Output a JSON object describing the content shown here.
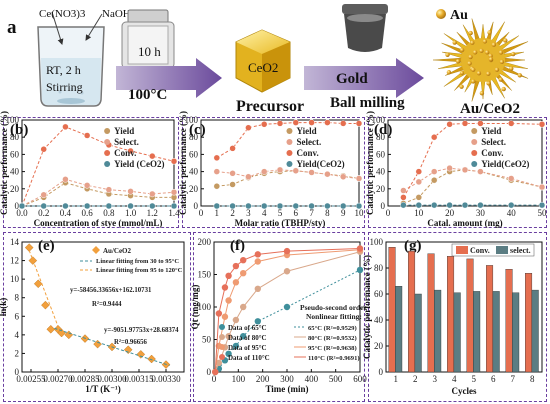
{
  "scheme": {
    "panel_label": "a",
    "step1_reagents": [
      "Ce(NO3)3",
      "NaOH"
    ],
    "step1_condition": [
      "RT, 2 h",
      "Stirring"
    ],
    "step2_time": "10 h",
    "step2_temperature": "100°C",
    "precursor_formula": "CeO2",
    "precursor_label": "Precursor",
    "gold_label": "Gold",
    "milling_label": "Ball milling",
    "legend_au": "Au",
    "product_label": "Au/CeO2"
  },
  "colors": {
    "yield": "#c49a62",
    "select": "#e6a08a",
    "conv": "#e56e4f",
    "ceo2": "#4f8a98",
    "orange": "#f2a03d",
    "teal": "#3f8f9b"
  },
  "chart_data": [
    {
      "panel": "b",
      "type": "line",
      "xlabel": "Concentration of stye (mmol/mL)",
      "ylabel": "Catalytic performance (%)",
      "xlim": [
        0,
        1.4
      ],
      "ylim": [
        0,
        100
      ],
      "xticks": [
        "0.0",
        "0.2",
        "0.4",
        "0.6",
        "0.8",
        "1.0",
        "1.2",
        "1.4"
      ],
      "yticks": [
        "0",
        "20",
        "40",
        "60",
        "80",
        "100"
      ],
      "legend": [
        "Yield",
        "Select.",
        "Conv.",
        "Yield (CeO2)"
      ],
      "series": [
        {
          "name": "Yield",
          "x": [
            0,
            0.2,
            0.4,
            0.6,
            0.8,
            1.0,
            1.2,
            1.4
          ],
          "values": [
            0,
            10,
            27,
            20,
            14,
            12,
            10,
            10
          ]
        },
        {
          "name": "Select.",
          "x": [
            0,
            0.2,
            0.4,
            0.6,
            0.8,
            1.0,
            1.2,
            1.4
          ],
          "values": [
            0,
            13,
            31,
            24,
            19,
            17,
            14,
            16
          ]
        },
        {
          "name": "Conv.",
          "x": [
            0,
            0.2,
            0.4,
            0.6,
            0.8,
            1.0,
            1.2,
            1.4
          ],
          "values": [
            0,
            66,
            92,
            82,
            71,
            64,
            58,
            52
          ]
        },
        {
          "name": "Yield (CeO2)",
          "x": [
            0,
            0.2,
            0.4,
            0.6,
            0.8,
            1.0,
            1.2,
            1.4
          ],
          "values": [
            0,
            0,
            0,
            0,
            0,
            0,
            0,
            0
          ]
        }
      ]
    },
    {
      "panel": "c",
      "type": "line",
      "xlabel": "Molar ratio (TBHP/sty)",
      "ylabel": "Catalytic performance (%)",
      "xlim": [
        0,
        10
      ],
      "ylim": [
        0,
        100
      ],
      "xticks": [
        "0",
        "1",
        "2",
        "3",
        "4",
        "5",
        "6",
        "7",
        "8",
        "9",
        "10"
      ],
      "yticks": [
        "0",
        "20",
        "40",
        "60",
        "80",
        "100"
      ],
      "legend": [
        "Yield",
        "Select.",
        "Conv.",
        "Yield(CeO2)"
      ],
      "series": [
        {
          "name": "Yield",
          "x": [
            1,
            2,
            3,
            4,
            5,
            6,
            7,
            8,
            9,
            10
          ],
          "values": [
            23,
            25,
            33,
            38,
            40,
            41,
            39,
            37,
            35,
            32
          ]
        },
        {
          "name": "Select.",
          "x": [
            1,
            2,
            3,
            4,
            5,
            6,
            7,
            8,
            9,
            10
          ],
          "values": [
            40,
            38,
            34,
            40,
            42,
            41,
            39,
            37,
            34,
            32
          ]
        },
        {
          "name": "Conv.",
          "x": [
            1,
            2,
            3,
            4,
            5,
            6,
            7,
            8,
            9,
            10
          ],
          "values": [
            56,
            67,
            91,
            95,
            96,
            97,
            97,
            97,
            96,
            96
          ]
        },
        {
          "name": "Yield(CeO2)",
          "x": [
            1,
            2,
            3,
            4,
            5,
            6,
            7,
            8,
            9,
            10
          ],
          "values": [
            0,
            0,
            0,
            0,
            0,
            0,
            0,
            0,
            0,
            0
          ]
        }
      ]
    },
    {
      "panel": "d",
      "type": "line",
      "xlabel": "Catal. amount (mg)",
      "ylabel": "Catalytic performance (%)",
      "xlim": [
        0,
        50
      ],
      "ylim": [
        0,
        100
      ],
      "xticks": [
        "0",
        "10",
        "20",
        "30",
        "40",
        "50"
      ],
      "yticks": [
        "0",
        "20",
        "40",
        "60",
        "80",
        "100"
      ],
      "legend": [
        "Yield",
        "Select.",
        "Conv.",
        "Yield(CeO2)"
      ],
      "series": [
        {
          "name": "Yield",
          "x": [
            5,
            10,
            15,
            20,
            25,
            30,
            40,
            50
          ],
          "values": [
            3,
            10,
            30,
            40,
            42,
            40,
            30,
            22
          ]
        },
        {
          "name": "Select.",
          "x": [
            5,
            10,
            15,
            20,
            25,
            30,
            40,
            50
          ],
          "values": [
            18,
            28,
            40,
            44,
            42,
            40,
            32,
            22
          ]
        },
        {
          "name": "Conv.",
          "x": [
            5,
            10,
            15,
            20,
            25,
            30,
            40,
            50
          ],
          "values": [
            10,
            40,
            80,
            95,
            96,
            96,
            96,
            95
          ]
        },
        {
          "name": "Yield(CeO2)",
          "x": [
            5,
            10,
            15,
            20,
            25,
            30,
            40,
            50
          ],
          "values": [
            1,
            1,
            1,
            1,
            1,
            1,
            1,
            1
          ]
        }
      ]
    },
    {
      "panel": "e",
      "type": "scatter",
      "xlabel": "1/T (K⁻¹)",
      "ylabel": "ln(k)",
      "xlim": [
        0.0025,
        0.0034
      ],
      "ylim": [
        0,
        14
      ],
      "xticks": [
        "0.00255",
        "0.00270",
        "0.00285",
        "0.00300",
        "0.00315",
        "0.00330"
      ],
      "yticks": [
        "0",
        "2",
        "4",
        "6",
        "8",
        "10",
        "12",
        "14"
      ],
      "legend": [
        "Au/CeO2",
        "Linear fitting from 30 to 95°C",
        "Linear fitting from 95 to 120°C"
      ],
      "series": [
        {
          "name": "Au/CeO2",
          "x": [
            0.00254,
            0.00256,
            0.00259,
            0.00263,
            0.00266,
            0.0027,
            0.00272,
            0.00276,
            0.00285,
            0.00292,
            0.003,
            0.00309,
            0.00316,
            0.00322,
            0.0033
          ],
          "values": [
            13.4,
            12.0,
            9.5,
            7.2,
            4.6,
            4.6,
            4.2,
            4.0,
            3.6,
            3.0,
            2.7,
            2.4,
            1.9,
            1.4,
            0.8
          ]
        }
      ],
      "annotations": [
        "y=-58456.33656x+162.10731",
        "R²=0.9444",
        "y=-9051.97753x+28.68374",
        "R²=0.96656"
      ]
    },
    {
      "panel": "f",
      "type": "scatter",
      "xlabel": "Time (min)",
      "ylabel": "Qt (mg/mg)",
      "xlim": [
        0,
        600
      ],
      "ylim": [
        0,
        200
      ],
      "xticks": [
        "0",
        "100",
        "200",
        "300",
        "400",
        "500",
        "600"
      ],
      "yticks": [
        "0",
        "50",
        "100",
        "150",
        "200"
      ],
      "title": "Pseudo-second order",
      "subtitle": "Nonlinear fitting:",
      "legend": [
        "Data of 65°C",
        "Data of 80°C",
        "Data of 95°C",
        "Data of 110°C"
      ],
      "fit_legend": [
        "65°C (R²=0.9529)",
        "80°C (R²=0.9532)",
        "95°C (R²=0.9638)",
        "110°C (R²=0.9691)"
      ],
      "series": [
        {
          "name": "Data of 65°C",
          "x": [
            5,
            20,
            45,
            60,
            90,
            120,
            180,
            300,
            600
          ],
          "values": [
            0,
            5,
            18,
            28,
            40,
            55,
            78,
            100,
            157
          ]
        },
        {
          "name": "Data of 80°C",
          "x": [
            5,
            20,
            45,
            60,
            90,
            120,
            180,
            300,
            600
          ],
          "values": [
            0,
            14,
            38,
            55,
            80,
            100,
            128,
            155,
            185
          ]
        },
        {
          "name": "Data of 95°C",
          "x": [
            5,
            20,
            45,
            60,
            90,
            120,
            180,
            300,
            600
          ],
          "values": [
            0,
            40,
            85,
            110,
            138,
            152,
            170,
            180,
            188
          ]
        },
        {
          "name": "Data of 110°C",
          "x": [
            5,
            20,
            45,
            60,
            90,
            120,
            180,
            300,
            600
          ],
          "values": [
            0,
            90,
            130,
            148,
            163,
            172,
            181,
            186,
            190
          ]
        }
      ]
    },
    {
      "panel": "g",
      "type": "bar",
      "xlabel": "Cycles",
      "ylabel": "Catalytic performance (%)",
      "ylim": [
        0,
        100
      ],
      "categories": [
        "1",
        "2",
        "3",
        "4",
        "5",
        "6",
        "7",
        "8"
      ],
      "yticks": [
        "0",
        "20",
        "40",
        "60",
        "80",
        "100"
      ],
      "legend": [
        "Conv.",
        "select."
      ],
      "series": [
        {
          "name": "Conv.",
          "values": [
            96,
            93,
            91,
            89,
            87,
            82,
            79,
            76
          ]
        },
        {
          "name": "select.",
          "values": [
            66,
            60,
            63,
            61,
            62,
            62,
            61,
            63
          ]
        }
      ]
    }
  ]
}
